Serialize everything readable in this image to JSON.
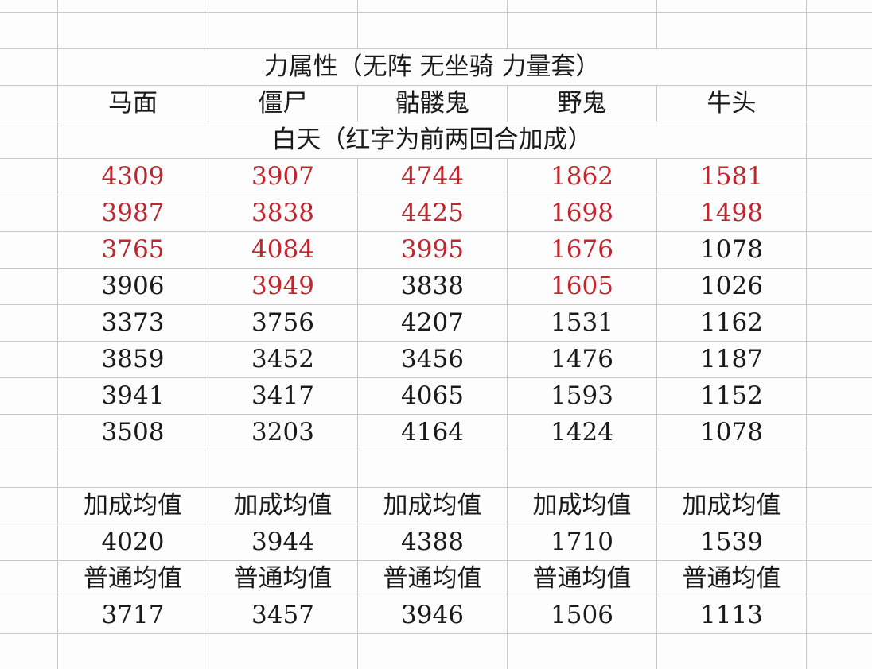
{
  "title": "力属性（无阵 无坐骑 力量套）",
  "columns": [
    "马面",
    "僵尸",
    "骷髅鬼",
    "野鬼",
    "牛头"
  ],
  "subtitle": "白天（红字为前两回合加成）",
  "colors": {
    "bonus_text": "#c0262e",
    "normal_text": "#1a1a1a",
    "grid": "#c9c9c9"
  },
  "rows": [
    [
      {
        "v": "4309",
        "bonus": true
      },
      {
        "v": "3907",
        "bonus": true
      },
      {
        "v": "4744",
        "bonus": true
      },
      {
        "v": "1862",
        "bonus": true
      },
      {
        "v": "1581",
        "bonus": true
      }
    ],
    [
      {
        "v": "3987",
        "bonus": true
      },
      {
        "v": "3838",
        "bonus": true
      },
      {
        "v": "4425",
        "bonus": true
      },
      {
        "v": "1698",
        "bonus": true
      },
      {
        "v": "1498",
        "bonus": true
      }
    ],
    [
      {
        "v": "3765",
        "bonus": true
      },
      {
        "v": "4084",
        "bonus": true
      },
      {
        "v": "3995",
        "bonus": true
      },
      {
        "v": "1676",
        "bonus": true
      },
      {
        "v": "1078",
        "bonus": false
      }
    ],
    [
      {
        "v": "3906",
        "bonus": false
      },
      {
        "v": "3949",
        "bonus": true
      },
      {
        "v": "3838",
        "bonus": false
      },
      {
        "v": "1605",
        "bonus": true
      },
      {
        "v": "1026",
        "bonus": false
      }
    ],
    [
      {
        "v": "3373",
        "bonus": false
      },
      {
        "v": "3756",
        "bonus": false
      },
      {
        "v": "4207",
        "bonus": false
      },
      {
        "v": "1531",
        "bonus": false
      },
      {
        "v": "1162",
        "bonus": false
      }
    ],
    [
      {
        "v": "3859",
        "bonus": false
      },
      {
        "v": "3452",
        "bonus": false
      },
      {
        "v": "3456",
        "bonus": false
      },
      {
        "v": "1476",
        "bonus": false
      },
      {
        "v": "1187",
        "bonus": false
      }
    ],
    [
      {
        "v": "3941",
        "bonus": false
      },
      {
        "v": "3417",
        "bonus": false
      },
      {
        "v": "4065",
        "bonus": false
      },
      {
        "v": "1593",
        "bonus": false
      },
      {
        "v": "1152",
        "bonus": false
      }
    ],
    [
      {
        "v": "3508",
        "bonus": false
      },
      {
        "v": "3203",
        "bonus": false
      },
      {
        "v": "4164",
        "bonus": false
      },
      {
        "v": "1424",
        "bonus": false
      },
      {
        "v": "1078",
        "bonus": false
      }
    ]
  ],
  "bonus_avg": {
    "label": "加成均值",
    "values": [
      "4020",
      "3944",
      "4388",
      "1710",
      "1539"
    ]
  },
  "normal_avg": {
    "label": "普通均值",
    "values": [
      "3717",
      "3457",
      "3946",
      "1506",
      "1113"
    ]
  }
}
